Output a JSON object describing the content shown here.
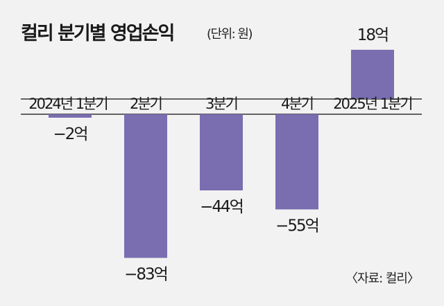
{
  "chart_data": {
    "type": "bar",
    "title": "컬리 분기별 영업손익",
    "unit_label": "(단위: 원)",
    "categories": [
      "2024년 1분기",
      "2분기",
      "3분기",
      "4분기",
      "2025년 1분기"
    ],
    "values": [
      -2,
      -83,
      -44,
      -55,
      18
    ],
    "value_labels": [
      "−2억",
      "−83억",
      "−44억",
      "−55억",
      "18억"
    ],
    "xlabel": "",
    "ylabel": "",
    "grid": false,
    "bar_color": "#7a6db0",
    "source": "〈자료: 컬리〉"
  }
}
